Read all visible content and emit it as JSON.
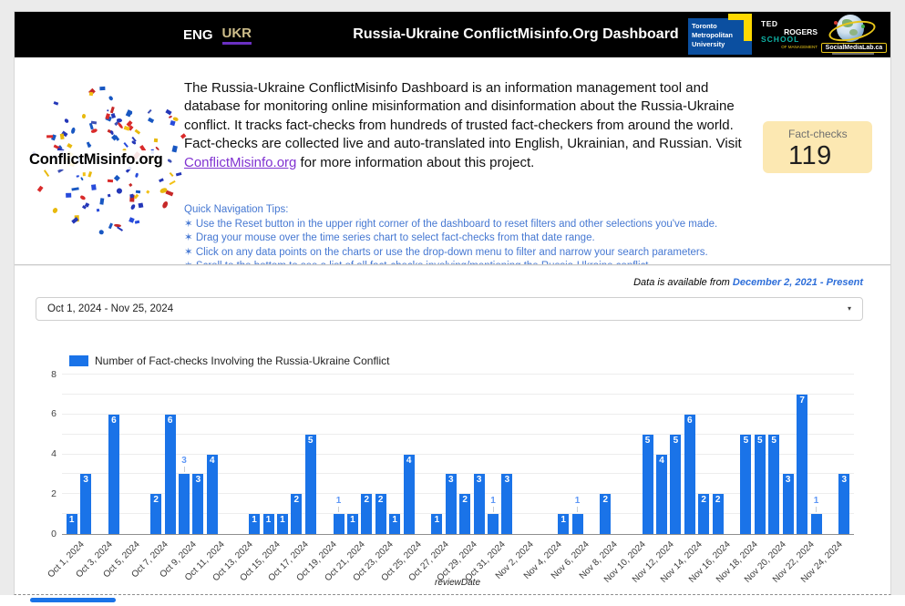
{
  "header": {
    "lang": {
      "eng": "ENG",
      "ukr": "UKR"
    },
    "title": "Russia-Ukraine ConflictMisinfo.Org Dashboard",
    "logos": {
      "tmu": {
        "lines": [
          "Toronto",
          "Metropolitan",
          "University"
        ]
      },
      "ted_rogers": {
        "lines": [
          "TED",
          "ROGERS",
          "SCHOOL",
          "OF MANAGEMENT"
        ]
      },
      "social_media_lab": {
        "name": "SocialMediaLab.ca"
      }
    }
  },
  "intro": {
    "logo_text": "ConflictMisinfo.org",
    "description": {
      "before_link": "The Russia-Ukraine ConflictMisinfo Dashboard is an information management tool and database for monitoring online misinformation and disinformation about the Russia-Ukraine conflict. It tracks fact-checks from hundreds of trusted fact-checkers from around the world. Fact-checks are collected live and auto-translated into English, Ukrainian, and Russian. Visit ",
      "link_text": "ConflictMisinfo.org",
      "after_link": " for more information about this project."
    },
    "tips": {
      "title": "Quick Navigation Tips:",
      "bullet": "✶",
      "items": [
        "Use the Reset button in the upper right corner of the dashboard to reset filters and other selections you've made.",
        "Drag your mouse over the time series chart to select fact-checks from that date range.",
        "Click on any data points on the charts or use the drop-down menu to filter and narrow your search parameters.",
        "Scroll to the bottom to see a list of all fact-checks involving/mentioning the Russia-Ukraine conflict."
      ]
    },
    "scorecard": {
      "label": "Fact-checks",
      "value": "119"
    }
  },
  "filters": {
    "availability_prefix": "Data is available from ",
    "availability_range": "December 2, 2021 - Present",
    "date_range": {
      "value": "Oct 1, 2024 - Nov 25, 2024",
      "caret": "▾"
    }
  },
  "chart_data": {
    "type": "bar",
    "legend": "Number of Fact-checks Involving the Russia-Ukraine Conflict",
    "xlabel": "reviewDate",
    "x_start": "Oct 1, 2024",
    "x_end": "Nov 25, 2024",
    "x_tick_every_days": 2,
    "ylim": [
      0,
      8
    ],
    "yticks": [
      0,
      2,
      4,
      6,
      8
    ],
    "grid": true,
    "legend_position": "top-left",
    "bar_color": "#1a73e8",
    "label_above_color": "#5e97f6",
    "points": [
      {
        "date": "Oct 1, 2024",
        "value": 1,
        "label_pos": "inside"
      },
      {
        "date": "Oct 2, 2024",
        "value": 3,
        "label_pos": "inside"
      },
      {
        "date": "Oct 4, 2024",
        "value": 6,
        "label_pos": "inside"
      },
      {
        "date": "Oct 7, 2024",
        "value": 2,
        "label_pos": "inside"
      },
      {
        "date": "Oct 8, 2024",
        "value": 6,
        "label_pos": "inside"
      },
      {
        "date": "Oct 9, 2024",
        "value": 3,
        "label_pos": "above"
      },
      {
        "date": "Oct 10, 2024",
        "value": 3,
        "label_pos": "inside"
      },
      {
        "date": "Oct 11, 2024",
        "value": 4,
        "label_pos": "inside"
      },
      {
        "date": "Oct 14, 2024",
        "value": 1,
        "label_pos": "inside"
      },
      {
        "date": "Oct 15, 2024",
        "value": 1,
        "label_pos": "inside"
      },
      {
        "date": "Oct 16, 2024",
        "value": 1,
        "label_pos": "inside"
      },
      {
        "date": "Oct 17, 2024",
        "value": 2,
        "label_pos": "inside"
      },
      {
        "date": "Oct 18, 2024",
        "value": 5,
        "label_pos": "inside"
      },
      {
        "date": "Oct 20, 2024",
        "value": 1,
        "label_pos": "above"
      },
      {
        "date": "Oct 21, 2024",
        "value": 1,
        "label_pos": "inside"
      },
      {
        "date": "Oct 22, 2024",
        "value": 2,
        "label_pos": "inside"
      },
      {
        "date": "Oct 23, 2024",
        "value": 2,
        "label_pos": "inside"
      },
      {
        "date": "Oct 24, 2024",
        "value": 1,
        "label_pos": "inside"
      },
      {
        "date": "Oct 25, 2024",
        "value": 4,
        "label_pos": "inside"
      },
      {
        "date": "Oct 27, 2024",
        "value": 1,
        "label_pos": "inside"
      },
      {
        "date": "Oct 28, 2024",
        "value": 3,
        "label_pos": "inside"
      },
      {
        "date": "Oct 29, 2024",
        "value": 2,
        "label_pos": "inside"
      },
      {
        "date": "Oct 30, 2024",
        "value": 3,
        "label_pos": "inside"
      },
      {
        "date": "Oct 31, 2024",
        "value": 1,
        "label_pos": "above"
      },
      {
        "date": "Nov 1, 2024",
        "value": 3,
        "label_pos": "inside"
      },
      {
        "date": "Nov 5, 2024",
        "value": 1,
        "label_pos": "inside"
      },
      {
        "date": "Nov 6, 2024",
        "value": 1,
        "label_pos": "above"
      },
      {
        "date": "Nov 8, 2024",
        "value": 2,
        "label_pos": "inside"
      },
      {
        "date": "Nov 11, 2024",
        "value": 5,
        "label_pos": "inside"
      },
      {
        "date": "Nov 12, 2024",
        "value": 4,
        "label_pos": "inside"
      },
      {
        "date": "Nov 13, 2024",
        "value": 5,
        "label_pos": "inside"
      },
      {
        "date": "Nov 14, 2024",
        "value": 6,
        "label_pos": "inside"
      },
      {
        "date": "Nov 15, 2024",
        "value": 2,
        "label_pos": "inside"
      },
      {
        "date": "Nov 16, 2024",
        "value": 2,
        "label_pos": "inside"
      },
      {
        "date": "Nov 18, 2024",
        "value": 5,
        "label_pos": "inside"
      },
      {
        "date": "Nov 19, 2024",
        "value": 5,
        "label_pos": "inside"
      },
      {
        "date": "Nov 20, 2024",
        "value": 5,
        "label_pos": "inside"
      },
      {
        "date": "Nov 21, 2024",
        "value": 3,
        "label_pos": "inside"
      },
      {
        "date": "Nov 22, 2024",
        "value": 7,
        "label_pos": "inside"
      },
      {
        "date": "Nov 23, 2024",
        "value": 1,
        "label_pos": "above"
      },
      {
        "date": "Nov 25, 2024",
        "value": 3,
        "label_pos": "inside"
      }
    ]
  },
  "colors": {
    "bar": "#1a73e8",
    "scorecard_bg": "#fce8b2",
    "tips_blue": "#4678d2",
    "link_purple": "#8133d1",
    "availability_blue": "#2d6ed9",
    "ukr_tan": "#cdbd8a",
    "ukr_underline": "#6a30c2"
  }
}
